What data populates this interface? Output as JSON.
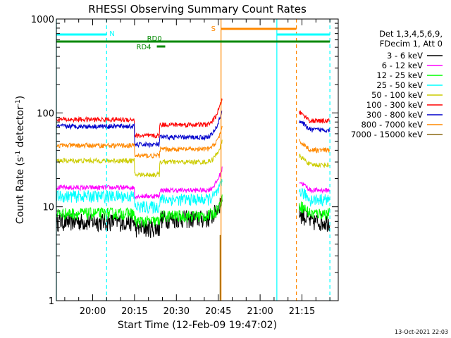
{
  "chart_data": {
    "type": "line",
    "title": "RHESSI Observing Summary Count Rates",
    "xlabel": "Start Time (12-Feb-09 19:47:02)",
    "ylabel": "Count Rate (s",
    "ylabel_sup": "-1",
    "ylabel_tail": " detector",
    "ylabel_tail_sup": "-1",
    "ylabel_end": ")",
    "yscale": "log",
    "xlim": [
      "19:47",
      "21:28"
    ],
    "ylim": [
      1,
      1000
    ],
    "x_tick_labels": [
      "20:00",
      "20:15",
      "20:30",
      "20:45",
      "21:00",
      "21:15"
    ],
    "y_tick_labels": [
      "1",
      "10",
      "100",
      "1000"
    ],
    "legend_position": "top-right",
    "legend_header": [
      "Det 1,3,4,5,6,9,",
      "FDecim 1, Att 0"
    ],
    "footer_date": "13-Oct-2021 22:03",
    "flag_labels": {
      "night": "N",
      "saa": "S",
      "rd0": "RD0",
      "rd4": "RD4"
    },
    "series": [
      {
        "name": "3 - 6 keV",
        "color": "#000000",
        "pre": 7.0,
        "low": 6.0,
        "post": 7.5,
        "peak": 13.0,
        "tail": 7.0
      },
      {
        "name": "6 - 12 keV",
        "color": "#ff00ff",
        "pre": 16.0,
        "low": 13.0,
        "post": 15.0,
        "peak": 26.0,
        "tail": 15.0
      },
      {
        "name": "12 - 25 keV",
        "color": "#00ff00",
        "pre": 8.5,
        "low": 7.0,
        "post": 8.0,
        "peak": 12.0,
        "tail": 8.5
      },
      {
        "name": "25 - 50 keV",
        "color": "#00ffff",
        "pre": 13.0,
        "low": 10.0,
        "post": 12.0,
        "peak": 18.0,
        "tail": 12.0
      },
      {
        "name": "50 - 100 keV",
        "color": "#cccc00",
        "pre": 31.0,
        "low": 22.0,
        "post": 30.0,
        "peak": 50.0,
        "tail": 28.0
      },
      {
        "name": "100 - 300 keV",
        "color": "#ff0000",
        "pre": 85.0,
        "low": 57.0,
        "post": 75.0,
        "peak": 145.0,
        "tail": 82.0
      },
      {
        "name": "300 - 800 keV",
        "color": "#0000cc",
        "pre": 72.0,
        "low": 46.0,
        "post": 55.0,
        "peak": 110.0,
        "tail": 66.0
      },
      {
        "name": "800 - 7000 keV",
        "color": "#ff8800",
        "pre": 45.0,
        "low": 35.0,
        "post": 41.0,
        "peak": 70.0,
        "tail": 40.0
      },
      {
        "name": "7000 - 15000 keV",
        "color": "#8b6914",
        "pre": 0,
        "low": 0,
        "post": 0,
        "peak": 5.0,
        "tail": 0
      }
    ],
    "time_markers": [
      {
        "type": "eclipse-end",
        "time": "19:47",
        "color": "#00ffff",
        "style": "solid"
      },
      {
        "type": "eclipse-end",
        "time": "20:05",
        "color": "#00ffff",
        "style": "dashed"
      },
      {
        "type": "saa-start",
        "time": "20:46",
        "color": "#ff8800",
        "style": "solid"
      },
      {
        "type": "eclipse-start",
        "time": "21:06",
        "color": "#00ffff",
        "style": "solid"
      },
      {
        "type": "saa-end",
        "time": "21:13",
        "color": "#ff8800",
        "style": "dashed"
      },
      {
        "type": "eclipse-end",
        "time": "21:25",
        "color": "#00ffff",
        "style": "dashed"
      }
    ],
    "flag_bars": {
      "night": [
        {
          "start": "19:47",
          "end": "20:05"
        },
        {
          "start": "21:06",
          "end": "21:25"
        }
      ],
      "saa": [
        {
          "start": "20:46",
          "end": "21:13"
        }
      ],
      "rd0": [
        {
          "start": "19:47",
          "end": "21:25"
        }
      ],
      "rd4": [
        {
          "start": "20:23",
          "end": "20:26"
        }
      ]
    },
    "data_gaps": [
      {
        "start": "20:48",
        "end": "21:14"
      }
    ],
    "attenuator_dip": {
      "start": "20:15",
      "end": "20:24"
    }
  }
}
